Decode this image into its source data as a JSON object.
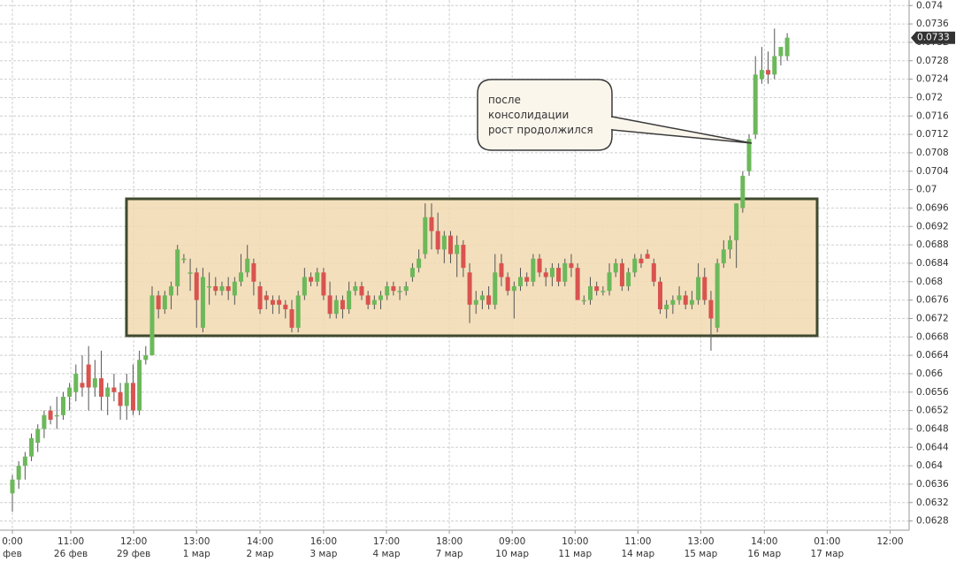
{
  "chart_data": {
    "type": "candlestick",
    "open": [
      0.0634,
      0.0637,
      0.064,
      0.0642,
      0.0645,
      0.0648,
      0.0652,
      0.0651,
      0.0651,
      0.0655,
      0.0656,
      0.0658,
      0.0662,
      0.0657,
      0.0659,
      0.0655,
      0.0657,
      0.0656,
      0.0653,
      0.0658,
      0.0652,
      0.0663,
      0.0664,
      0.0677,
      0.0674,
      0.0677,
      0.0679,
      0.0685,
      0.0682,
      0.0682,
      0.067,
      0.0679,
      0.0679,
      0.0678,
      0.0679,
      0.0677,
      0.068,
      0.0682,
      0.0684,
      0.0679,
      0.0677,
      0.0676,
      0.0676,
      0.0675,
      0.0674,
      0.067,
      0.0677,
      0.0681,
      0.068,
      0.0682,
      0.0677,
      0.0673,
      0.0676,
      0.0674,
      0.0678,
      0.0679,
      0.0677,
      0.0675,
      0.0676,
      0.0677,
      0.0679,
      0.0678,
      0.0678,
      0.0681,
      0.0683,
      0.0686,
      0.0694,
      0.0691,
      0.0687,
      0.069,
      0.0686,
      0.0688,
      0.0682,
      0.0675,
      0.0676,
      0.0677,
      0.0675,
      0.0684,
      0.0681,
      0.0678,
      0.0679,
      0.0681,
      0.068,
      0.0685,
      0.0682,
      0.0681,
      0.0683,
      0.068,
      0.0684,
      0.0683,
      0.0676,
      0.0676,
      0.0679,
      0.0678,
      0.0678,
      0.0682,
      0.0684,
      0.0679,
      0.0682,
      0.0685,
      0.0686,
      0.0684,
      0.068,
      0.0674,
      0.0675,
      0.0676,
      0.0677,
      0.0675,
      0.0676,
      0.0681,
      0.0676,
      0.067,
      0.0684,
      0.0687,
      0.0689,
      0.0696,
      0.0704,
      0.0712,
      0.0724,
      0.0726,
      0.0725,
      0.0729,
      0.0729
    ],
    "high": [
      0.0638,
      0.0641,
      0.0643,
      0.0647,
      0.0649,
      0.0652,
      0.0653,
      0.0655,
      0.0656,
      0.0658,
      0.0662,
      0.0664,
      0.0666,
      0.0663,
      0.0665,
      0.0658,
      0.066,
      0.0658,
      0.066,
      0.0662,
      0.0665,
      0.0666,
      0.0679,
      0.0678,
      0.0678,
      0.068,
      0.0688,
      0.0686,
      0.0685,
      0.0683,
      0.0683,
      0.0682,
      0.0681,
      0.068,
      0.0681,
      0.0681,
      0.0686,
      0.0688,
      0.0685,
      0.068,
      0.0678,
      0.0677,
      0.0677,
      0.0676,
      0.0676,
      0.0678,
      0.0683,
      0.0682,
      0.0683,
      0.0683,
      0.068,
      0.0677,
      0.0677,
      0.068,
      0.068,
      0.068,
      0.0678,
      0.0677,
      0.0678,
      0.068,
      0.068,
      0.0679,
      0.068,
      0.0684,
      0.0687,
      0.0697,
      0.0697,
      0.0695,
      0.0691,
      0.0691,
      0.069,
      0.0689,
      0.0684,
      0.0678,
      0.0678,
      0.0679,
      0.0686,
      0.0686,
      0.0682,
      0.068,
      0.0683,
      0.0682,
      0.0686,
      0.0686,
      0.0683,
      0.0684,
      0.0684,
      0.0685,
      0.0686,
      0.0684,
      0.0677,
      0.0681,
      0.068,
      0.0679,
      0.0684,
      0.0685,
      0.0685,
      0.0683,
      0.0686,
      0.0686,
      0.0687,
      0.0685,
      0.0681,
      0.0676,
      0.0677,
      0.0679,
      0.0678,
      0.0678,
      0.0684,
      0.0683,
      0.0678,
      0.0685,
      0.0689,
      0.069,
      0.0697,
      0.0704,
      0.0712,
      0.0729,
      0.0731,
      0.073,
      0.0735,
      0.0731,
      0.0734
    ],
    "low": [
      0.063,
      0.0635,
      0.0637,
      0.0641,
      0.0643,
      0.0646,
      0.0649,
      0.0648,
      0.065,
      0.0652,
      0.0654,
      0.0655,
      0.0652,
      0.0655,
      0.0652,
      0.0651,
      0.0654,
      0.065,
      0.065,
      0.0651,
      0.0651,
      0.0662,
      0.0664,
      0.0672,
      0.0673,
      0.0674,
      0.0677,
      0.0684,
      0.0678,
      0.067,
      0.0669,
      0.0675,
      0.0677,
      0.0677,
      0.0676,
      0.0675,
      0.0679,
      0.0681,
      0.0677,
      0.0673,
      0.0674,
      0.0673,
      0.0673,
      0.0672,
      0.0669,
      0.0669,
      0.0676,
      0.0679,
      0.0679,
      0.0676,
      0.0672,
      0.0672,
      0.0672,
      0.0673,
      0.0677,
      0.0676,
      0.0674,
      0.0674,
      0.0674,
      0.0676,
      0.0677,
      0.0676,
      0.0677,
      0.068,
      0.0682,
      0.0685,
      0.0687,
      0.0686,
      0.0684,
      0.0684,
      0.0681,
      0.0681,
      0.0671,
      0.0673,
      0.0674,
      0.0674,
      0.0674,
      0.0679,
      0.0677,
      0.0672,
      0.0678,
      0.0679,
      0.0679,
      0.0681,
      0.0679,
      0.0679,
      0.0679,
      0.0679,
      0.0681,
      0.0676,
      0.0675,
      0.0675,
      0.0677,
      0.0677,
      0.0677,
      0.0681,
      0.0678,
      0.0678,
      0.0681,
      0.0683,
      0.0685,
      0.0679,
      0.0673,
      0.0672,
      0.0673,
      0.0675,
      0.0674,
      0.0674,
      0.0675,
      0.0675,
      0.0665,
      0.0669,
      0.0683,
      0.0685,
      0.0683,
      0.0695,
      0.0703,
      0.0711,
      0.0723,
      0.0723,
      0.0724,
      0.0727,
      0.0728
    ],
    "close": [
      0.0637,
      0.064,
      0.0642,
      0.0646,
      0.0648,
      0.0651,
      0.065,
      0.0651,
      0.0655,
      0.0657,
      0.066,
      0.0657,
      0.0657,
      0.0659,
      0.0655,
      0.0657,
      0.0656,
      0.0653,
      0.0658,
      0.0652,
      0.0663,
      0.0664,
      0.0677,
      0.0674,
      0.0677,
      0.0679,
      0.0687,
      0.0685,
      0.0682,
      0.0676,
      0.0681,
      0.0679,
      0.0678,
      0.0679,
      0.0678,
      0.068,
      0.0682,
      0.0685,
      0.068,
      0.0674,
      0.0676,
      0.0675,
      0.0675,
      0.0674,
      0.067,
      0.0677,
      0.0681,
      0.068,
      0.0682,
      0.0677,
      0.0673,
      0.0676,
      0.0674,
      0.0678,
      0.0679,
      0.0677,
      0.0675,
      0.0676,
      0.0677,
      0.0679,
      0.0678,
      0.0678,
      0.0679,
      0.0683,
      0.0685,
      0.0694,
      0.0691,
      0.0687,
      0.069,
      0.0686,
      0.0688,
      0.0683,
      0.0675,
      0.0676,
      0.0677,
      0.0675,
      0.0682,
      0.0681,
      0.0678,
      0.0679,
      0.0681,
      0.068,
      0.0685,
      0.0682,
      0.0681,
      0.0683,
      0.068,
      0.0684,
      0.0683,
      0.0676,
      0.0676,
      0.0679,
      0.0678,
      0.0678,
      0.0682,
      0.0684,
      0.0679,
      0.0682,
      0.0685,
      0.0684,
      0.0685,
      0.068,
      0.0674,
      0.0675,
      0.0676,
      0.0677,
      0.0675,
      0.0676,
      0.0681,
      0.0676,
      0.0672,
      0.0684,
      0.0687,
      0.0689,
      0.0697,
      0.0703,
      0.0711,
      0.0725,
      0.0726,
      0.0725,
      0.0729,
      0.0731,
      0.0733
    ],
    "up_color": "#6cb85a",
    "down_color": "#d9534f",
    "xlim": [
      -1.95,
      141.2
    ],
    "xticks": [
      {
        "value": 0,
        "label": "0:00",
        "date": "фев"
      },
      {
        "value": 9.2,
        "label": "11:00",
        "date": "26 фев"
      },
      {
        "value": 19.1,
        "label": "12:00",
        "date": "29 фев"
      },
      {
        "value": 29.0,
        "label": "13:00",
        "date": "1 мар"
      },
      {
        "value": 39.0,
        "label": "14:00",
        "date": "2 мар"
      },
      {
        "value": 49.0,
        "label": "16:00",
        "date": "3 мар"
      },
      {
        "value": 58.9,
        "label": "17:00",
        "date": "4 мар"
      },
      {
        "value": 68.8,
        "label": "18:00",
        "date": "7 мар"
      },
      {
        "value": 78.7,
        "label": "09:00",
        "date": "10 мар"
      },
      {
        "value": 88.6,
        "label": "10:00",
        "date": "11 мар"
      },
      {
        "value": 98.5,
        "label": "11:00",
        "date": "14 мар"
      },
      {
        "value": 108.4,
        "label": "13:00",
        "date": "15 мар"
      },
      {
        "value": 118.4,
        "label": "14:00",
        "date": "16 мар"
      },
      {
        "value": 128.3,
        "label": "01:00",
        "date": "17 мар"
      },
      {
        "value": 138.2,
        "label": "12:00"
      }
    ],
    "ylim": [
      0.0626,
      0.07412
    ],
    "yticks": [
      0.0628,
      0.0632,
      0.0636,
      0.064,
      0.0644,
      0.0648,
      0.0652,
      0.0656,
      0.066,
      0.0664,
      0.0668,
      0.0672,
      0.0676,
      0.068,
      0.0684,
      0.0688,
      0.0692,
      0.0696,
      0.07,
      0.0704,
      0.0708,
      0.0712,
      0.0716,
      0.072,
      0.0724,
      0.0728,
      0.0732,
      0.0736,
      0.074
    ],
    "grid": true,
    "last_price": 0.0733,
    "annotation": [
      "после",
      "консолидации",
      "рост продолжился"
    ]
  }
}
